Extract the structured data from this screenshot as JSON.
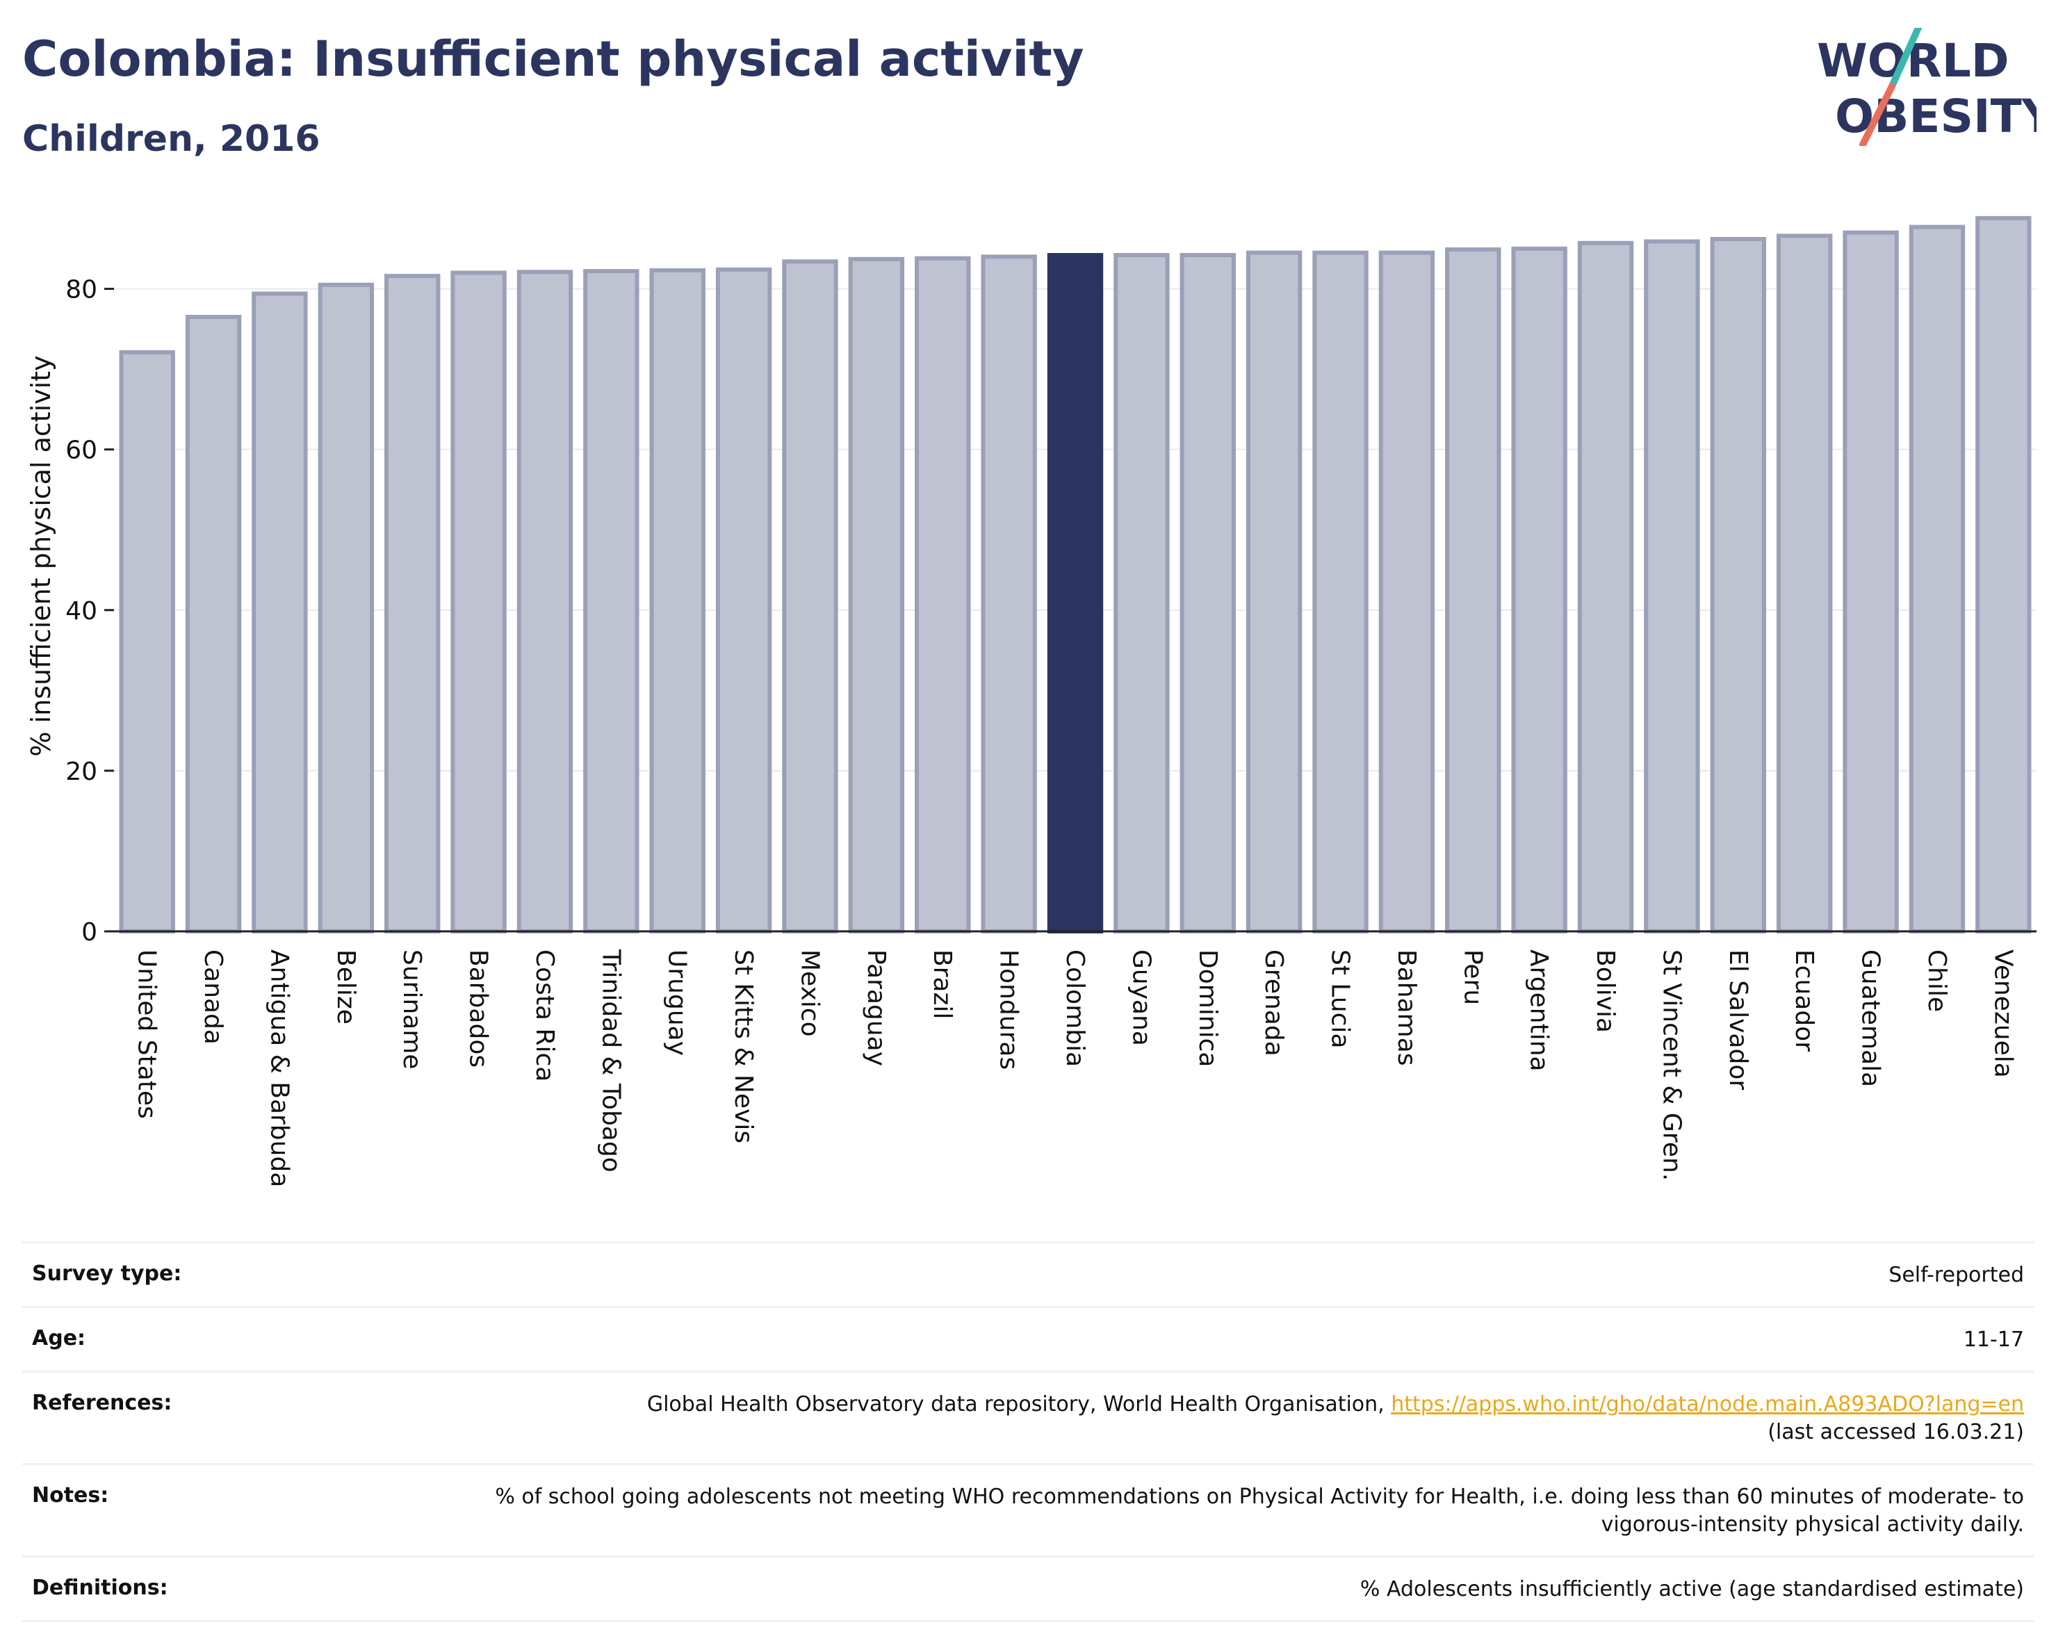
{
  "title": "Colombia: Insufficient physical activity",
  "subtitle": "Children, 2016",
  "logo": {
    "line1": "WORLD",
    "line2": "OBESITY",
    "color_text": "#2b3560",
    "color_slash_top": "#3bb7b0",
    "color_slash_bottom": "#e8705a"
  },
  "colors": {
    "bar": "#bfc2d1",
    "bar_border": "#9aa0b8",
    "highlight": "#2b3560",
    "grid": "#e9eaf0"
  },
  "chart_data": {
    "type": "bar",
    "title": "",
    "xlabel": "",
    "ylabel": "% insufficient physical activity",
    "ylim": [
      0,
      90
    ],
    "yticks": [
      0,
      20,
      40,
      60,
      80
    ],
    "grid": true,
    "highlight": "Colombia",
    "categories": [
      "United States",
      "Canada",
      "Antigua & Barbuda",
      "Belize",
      "Suriname",
      "Barbados",
      "Costa Rica",
      "Trinidad & Tobago",
      "Uruguay",
      "St Kitts & Nevis",
      "Mexico",
      "Paraguay",
      "Brazil",
      "Honduras",
      "Colombia",
      "Guyana",
      "Dominica",
      "Grenada",
      "St Lucia",
      "Bahamas",
      "Peru",
      "Argentina",
      "Bolivia",
      "St Vincent & Gren.",
      "El Salvador",
      "Ecuador",
      "Guatemala",
      "Chile",
      "Venezuela"
    ],
    "values": [
      72.1,
      76.5,
      79.4,
      80.5,
      81.6,
      82.0,
      82.1,
      82.2,
      82.3,
      82.4,
      83.4,
      83.7,
      83.8,
      84.0,
      84.2,
      84.2,
      84.2,
      84.5,
      84.5,
      84.5,
      84.9,
      85.0,
      85.7,
      85.9,
      86.2,
      86.6,
      87.0,
      87.7,
      88.8
    ]
  },
  "info": [
    {
      "label": "Survey type:",
      "value": "Self-reported"
    },
    {
      "label": "Age:",
      "value": "11-17"
    },
    {
      "label": "References:",
      "value": "Global Health Observatory data repository, World Health Organisation,",
      "link": "https://apps.who.int/gho/data/node.main.A893ADO?lang=en",
      "value2": "(last accessed 16.03.21)"
    },
    {
      "label": "Notes:",
      "value": "% of school going adolescents not meeting WHO recommendations on Physical Activity for Health, i.e. doing less than 60 minutes of moderate- to vigorous-intensity physical activity daily."
    },
    {
      "label": "Definitions:",
      "value": "% Adolescents insufficiently active (age standardised estimate)"
    }
  ]
}
